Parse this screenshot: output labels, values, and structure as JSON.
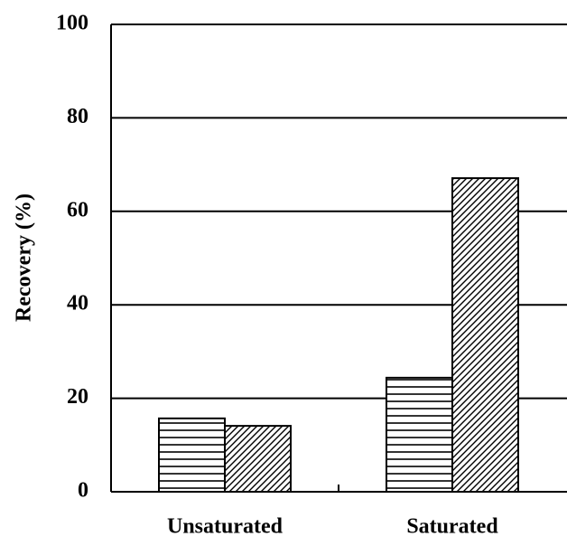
{
  "chart_data": {
    "type": "bar",
    "y_label": "Recovery (%)",
    "categories": [
      "Unsaturated",
      "Saturated"
    ],
    "series": [
      {
        "color": "#000000",
        "pattern": "horizontal",
        "values": [
          15.7,
          24.4
        ]
      },
      {
        "color": "#000000",
        "pattern": "diagonal",
        "values": [
          14.1,
          67.1
        ]
      }
    ],
    "ylim": [
      0,
      100
    ],
    "yticks": [
      0,
      20,
      40,
      60,
      80,
      100
    ],
    "grid": true
  }
}
